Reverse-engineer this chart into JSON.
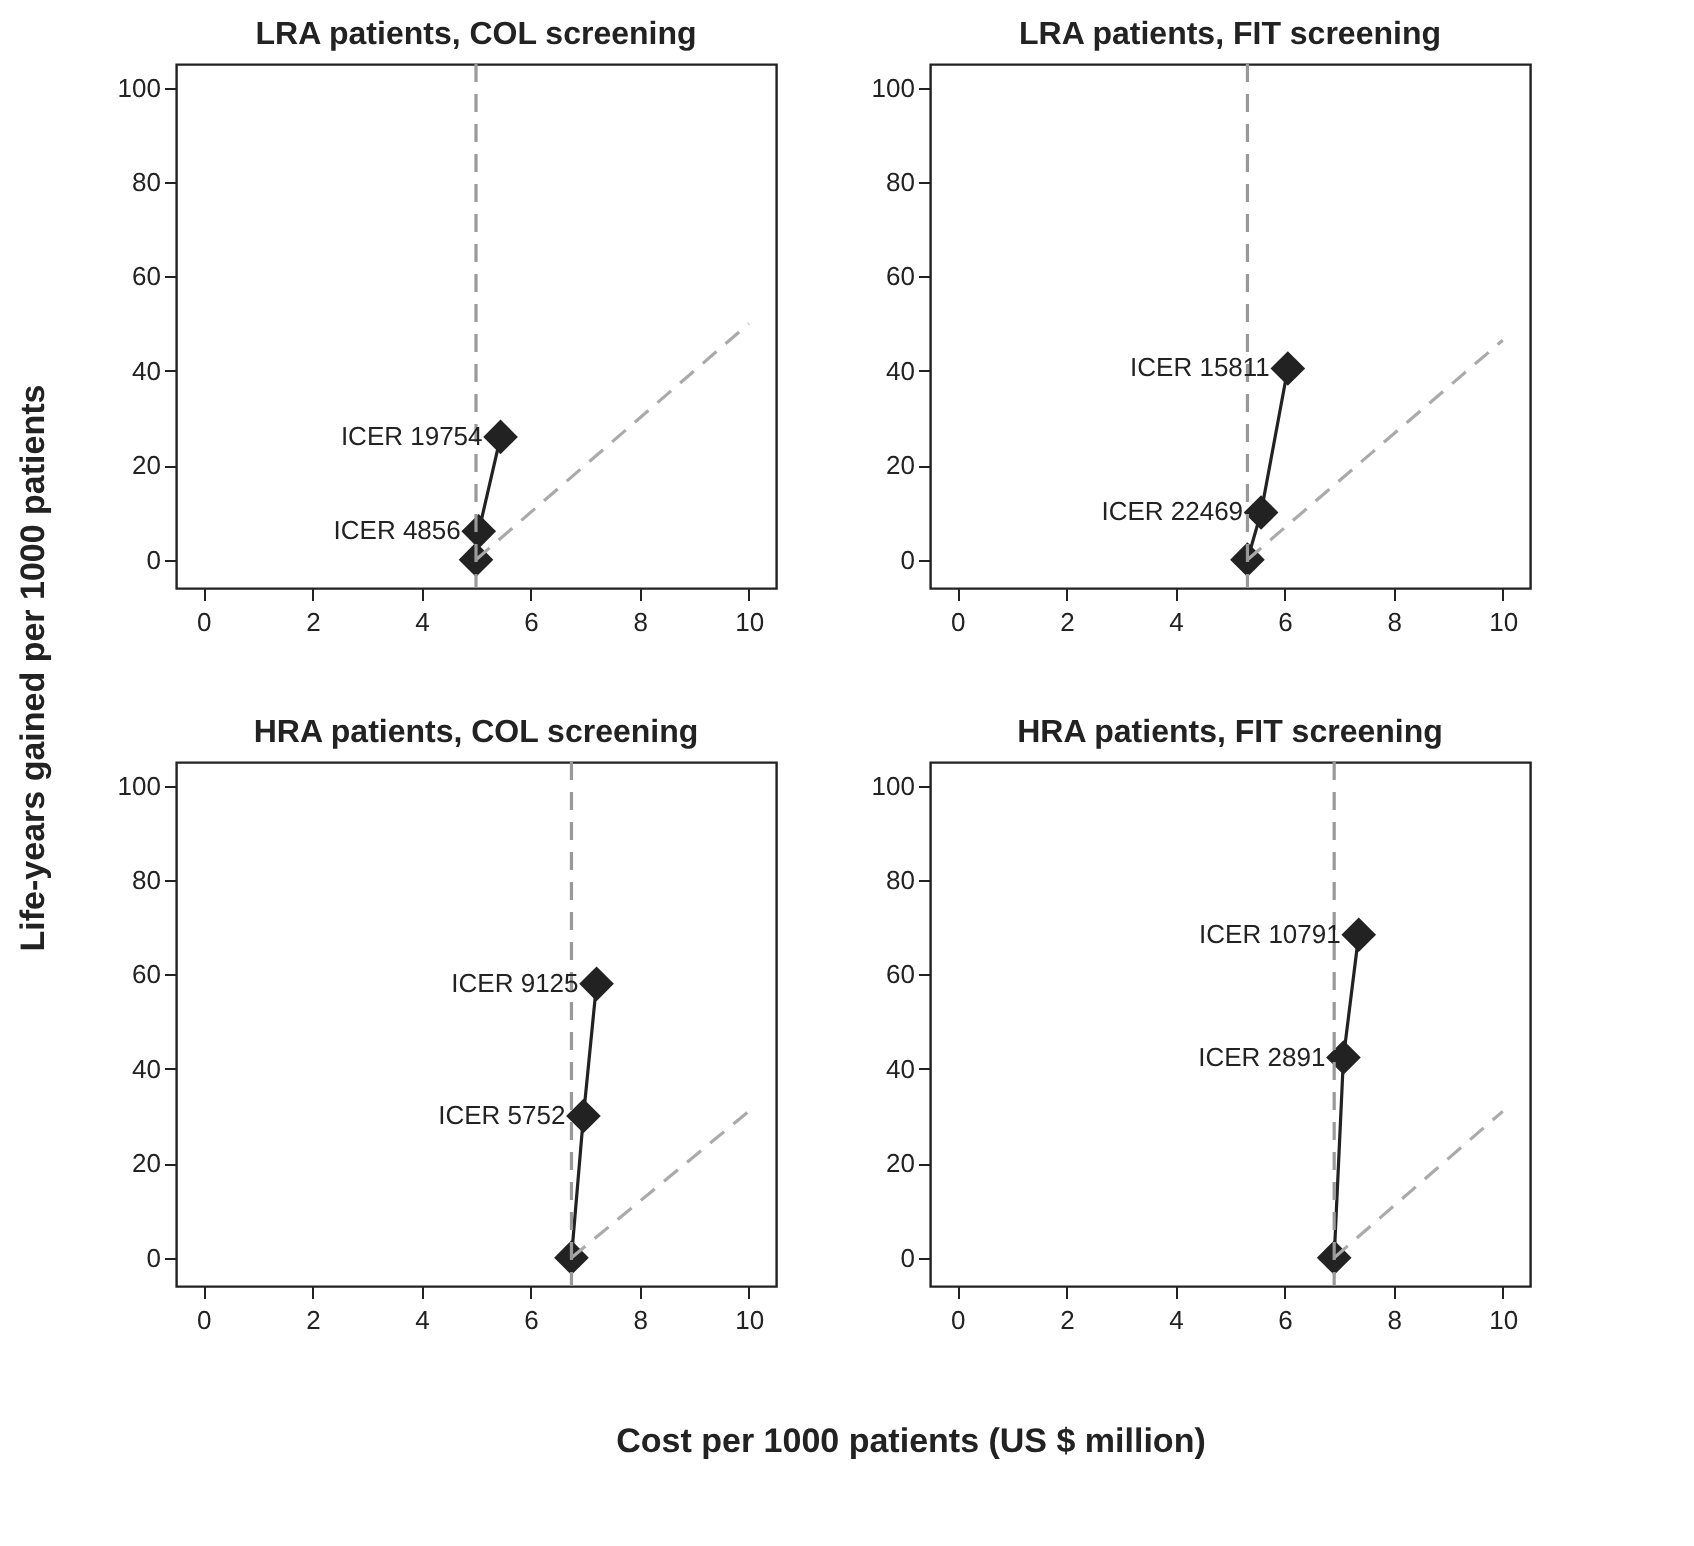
{
  "chart_data": [
    {
      "type": "line",
      "title": "LRA patients, COL screening",
      "ylabel": "Life-years gained per 1000 patients",
      "xlim": [
        -0.5,
        10.5
      ],
      "ylim": [
        -6,
        105
      ],
      "xticks": [
        0,
        2,
        4,
        6,
        8,
        10
      ],
      "yticks": [
        0,
        20,
        40,
        60,
        80,
        100
      ],
      "grid": false,
      "series": [
        {
          "color": "#222222",
          "marker": "diamond",
          "line_style": "solid",
          "x": [
            5.0,
            5.05,
            5.45
          ],
          "values": [
            0,
            6,
            26
          ]
        },
        {
          "color": "#aaaaaa",
          "marker": "none",
          "line_style": "dashed",
          "x": [
            5.0,
            10
          ],
          "values": [
            0,
            50
          ]
        }
      ],
      "ref_lines": [
        {
          "axis": "x",
          "value": 5.0,
          "color": "#999999",
          "line_style": "dashed"
        }
      ],
      "annotations": [
        {
          "text": "ICER 4856",
          "x": 5.05,
          "y": 6
        },
        {
          "text": "ICER 19754",
          "x": 5.45,
          "y": 26
        }
      ]
    },
    {
      "type": "line",
      "title": "LRA patients, FIT screening",
      "xlim": [
        -0.5,
        10.5
      ],
      "ylim": [
        -6,
        105
      ],
      "xticks": [
        0,
        2,
        4,
        6,
        8,
        10
      ],
      "yticks": [
        0,
        20,
        40,
        60,
        80,
        100
      ],
      "grid": false,
      "series": [
        {
          "color": "#222222",
          "marker": "diamond",
          "line_style": "solid",
          "x": [
            5.32,
            5.57,
            6.06
          ],
          "values": [
            0,
            10,
            40.5
          ]
        },
        {
          "color": "#aaaaaa",
          "marker": "none",
          "line_style": "dashed",
          "x": [
            5.32,
            10
          ],
          "values": [
            0,
            46.5
          ]
        }
      ],
      "ref_lines": [
        {
          "axis": "x",
          "value": 5.32,
          "color": "#999999",
          "line_style": "dashed"
        }
      ],
      "annotations": [
        {
          "text": "ICER 22469",
          "x": 5.57,
          "y": 10
        },
        {
          "text": "ICER 15811",
          "x": 6.06,
          "y": 40.5
        }
      ]
    },
    {
      "type": "line",
      "title": "HRA patients, COL screening",
      "xlabel": "Cost per 1000 patients (US $ million)",
      "xlim": [
        -0.5,
        10.5
      ],
      "ylim": [
        -6,
        105
      ],
      "xticks": [
        0,
        2,
        4,
        6,
        8,
        10
      ],
      "yticks": [
        0,
        20,
        40,
        60,
        80,
        100
      ],
      "grid": false,
      "series": [
        {
          "color": "#222222",
          "marker": "diamond",
          "line_style": "solid",
          "x": [
            6.75,
            6.97,
            7.21
          ],
          "values": [
            0,
            30,
            58
          ]
        },
        {
          "color": "#aaaaaa",
          "marker": "none",
          "line_style": "dashed",
          "x": [
            6.75,
            10
          ],
          "values": [
            0,
            31
          ]
        }
      ],
      "ref_lines": [
        {
          "axis": "x",
          "value": 6.75,
          "color": "#999999",
          "line_style": "dashed"
        }
      ],
      "annotations": [
        {
          "text": "ICER 5752",
          "x": 6.97,
          "y": 30
        },
        {
          "text": "ICER 9125",
          "x": 7.21,
          "y": 58
        }
      ]
    },
    {
      "type": "line",
      "title": "HRA patients, FIT screening",
      "xlim": [
        -0.5,
        10.5
      ],
      "ylim": [
        -6,
        105
      ],
      "xticks": [
        0,
        2,
        4,
        6,
        8,
        10
      ],
      "yticks": [
        0,
        20,
        40,
        60,
        80,
        100
      ],
      "grid": false,
      "series": [
        {
          "color": "#222222",
          "marker": "diamond",
          "line_style": "solid",
          "x": [
            6.91,
            7.08,
            7.36
          ],
          "values": [
            0,
            42.4,
            68.4
          ]
        },
        {
          "color": "#aaaaaa",
          "marker": "none",
          "line_style": "dashed",
          "x": [
            6.91,
            10
          ],
          "values": [
            0,
            31
          ]
        }
      ],
      "ref_lines": [
        {
          "axis": "x",
          "value": 6.91,
          "color": "#999999",
          "line_style": "dashed"
        }
      ],
      "annotations": [
        {
          "text": "ICER 2891",
          "x": 7.08,
          "y": 42.4
        },
        {
          "text": "ICER 10791",
          "x": 7.36,
          "y": 68.4
        }
      ]
    }
  ]
}
